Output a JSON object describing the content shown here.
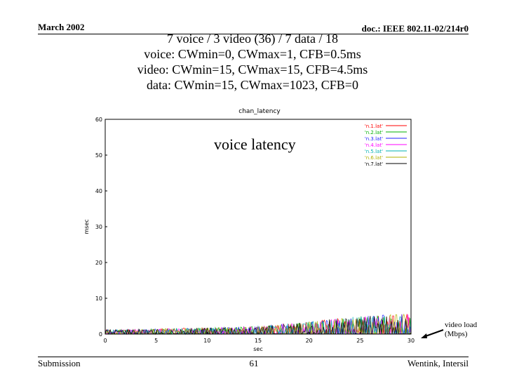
{
  "header": {
    "date": "March 2002",
    "doc": "doc.: IEEE 802.11-02/214r0"
  },
  "titles": [
    "7 voice / 3 video (36) / 7 data / 18",
    "voice: CWmin=0, CWmax=1, CFB=0.5ms",
    "video: CWmin=15, CWmax=15, CFB=4.5ms",
    "data: CWmin=15, CWmax=1023, CFB=0"
  ],
  "footer": {
    "left": "Submission",
    "page": "61",
    "right": "Wentink, Intersil"
  },
  "overlay_label": "voice latency",
  "annotation": {
    "line1": "video load",
    "line2": "(Mbps)"
  },
  "colors": {
    "series": [
      "#ff0000",
      "#00b000",
      "#2020ff",
      "#ff00ff",
      "#00b0b0",
      "#b0b000",
      "#000000"
    ],
    "axis": "#000000",
    "tick_text": "#000000"
  },
  "chart_data": {
    "type": "line",
    "title": "chan_latency",
    "xlabel": "sec",
    "ylabel": "msec",
    "xlim": [
      0,
      30
    ],
    "ylim": [
      0,
      60
    ],
    "xticks": [
      0,
      5,
      10,
      15,
      20,
      25,
      30
    ],
    "yticks": [
      0,
      10,
      20,
      30,
      40,
      50,
      60
    ],
    "legend_position": "top-right",
    "series": [
      {
        "name": "'n.1.lat'",
        "color": "#ff0000"
      },
      {
        "name": "'n.2.lat'",
        "color": "#00b000"
      },
      {
        "name": "'n.3.lat'",
        "color": "#2020ff"
      },
      {
        "name": "'n.4.lat'",
        "color": "#ff00ff"
      },
      {
        "name": "'n.5.lat'",
        "color": "#00b0b0"
      },
      {
        "name": "'n.6.lat'",
        "color": "#b0b000"
      },
      {
        "name": "'n.7.lat'",
        "color": "#000000"
      }
    ],
    "envelope": {
      "x": [
        0,
        5,
        10,
        15,
        20,
        25,
        30
      ],
      "y_max": [
        1.2,
        1.5,
        1.8,
        2.2,
        3.5,
        5.0,
        5.8
      ]
    }
  }
}
